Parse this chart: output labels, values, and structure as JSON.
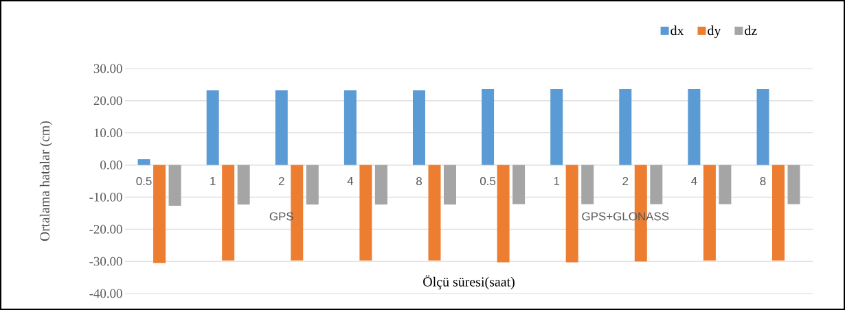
{
  "chart_data": {
    "type": "bar",
    "xlabel": "Ölçü süresi(saat)",
    "ylabel": "Ortalama hatalar (cm)",
    "categories": [
      "0.5",
      "1",
      "2",
      "4",
      "8",
      "0.5",
      "1",
      "2",
      "4",
      "8"
    ],
    "annotations": [
      "GPS",
      "GPS+GLONASS"
    ],
    "series": [
      {
        "name": "dx",
        "color": "#5b9bd5",
        "values": [
          1.8,
          23.3,
          23.3,
          23.3,
          23.3,
          23.6,
          23.6,
          23.6,
          23.6,
          23.6
        ]
      },
      {
        "name": "dy",
        "color": "#ed7d31",
        "values": [
          -30.5,
          -29.7,
          -29.7,
          -29.7,
          -29.7,
          -30.3,
          -30.3,
          -30.0,
          -29.7,
          -29.7
        ]
      },
      {
        "name": "dz",
        "color": "#a5a5a5",
        "values": [
          -12.7,
          -12.3,
          -12.3,
          -12.3,
          -12.3,
          -12.2,
          -12.2,
          -12.2,
          -12.2,
          -12.2
        ]
      }
    ],
    "ylim": [
      -40,
      30
    ],
    "yticks": [
      {
        "value": -40,
        "label": "-40.00"
      },
      {
        "value": -30,
        "label": "-30.00"
      },
      {
        "value": -20,
        "label": "-20.00"
      },
      {
        "value": -10,
        "label": "-10.00"
      },
      {
        "value": 0,
        "label": "0.00"
      },
      {
        "value": 10,
        "label": "10.00"
      },
      {
        "value": 20,
        "label": "20.00"
      },
      {
        "value": 30,
        "label": "30.00"
      }
    ],
    "grid": "y",
    "legend": "top right"
  }
}
